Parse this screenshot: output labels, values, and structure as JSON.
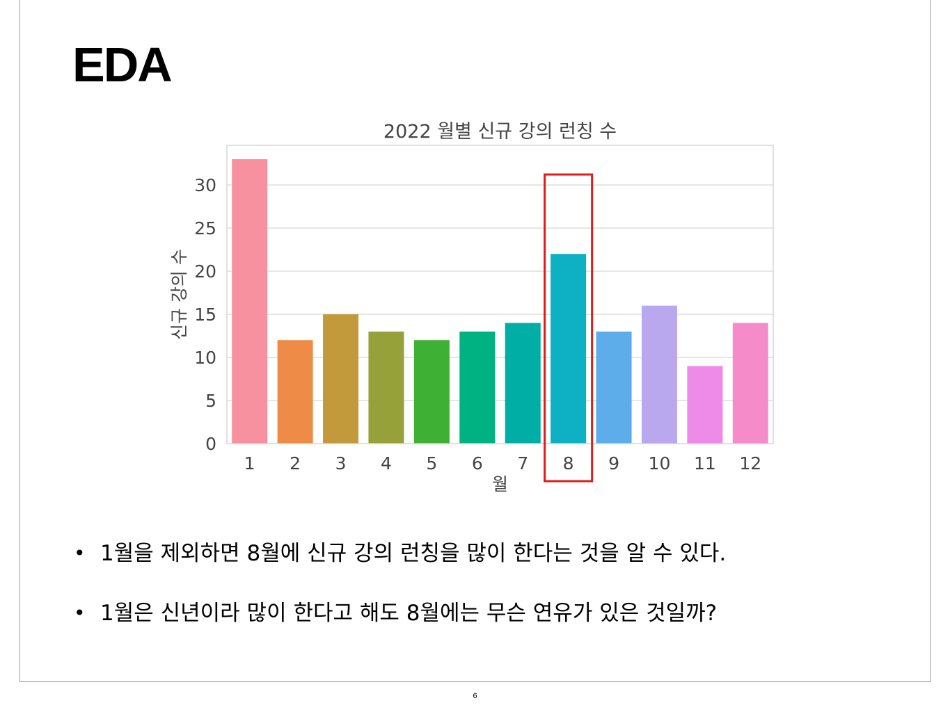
{
  "slide": {
    "title": "EDA",
    "bullets": [
      "1월을 제외하면 8월에 신규 강의 런칭을 많이 한다는 것을 알 수 있다.",
      "1월은 신년이라 많이 한다고 해도 8월에는 무슨 연유가 있은 것일까?"
    ],
    "page_number": "6"
  },
  "chart_data": {
    "type": "bar",
    "title": "2022 월별 신규 강의 런칭 수",
    "xlabel": "월",
    "ylabel": "신규 강의 수",
    "categories": [
      "1",
      "2",
      "3",
      "4",
      "5",
      "6",
      "7",
      "8",
      "9",
      "10",
      "11",
      "12"
    ],
    "values": [
      33,
      12,
      15,
      13,
      12,
      13,
      14,
      22,
      13,
      16,
      9,
      14
    ],
    "colors": [
      "#f7919f",
      "#ee8c47",
      "#c39a3b",
      "#97a13a",
      "#3eb034",
      "#00b282",
      "#00aea5",
      "#0eb0c4",
      "#5cadea",
      "#b9a8ee",
      "#ee8be8",
      "#f68bca"
    ],
    "ylim": [
      0,
      34.6
    ],
    "yticks": [
      0,
      5,
      10,
      15,
      20,
      25,
      30
    ],
    "grid": true,
    "legend": "none",
    "highlight": {
      "category": "8",
      "color": "#e01b1b"
    },
    "gridline_color": "#dddddd",
    "spine_color": "#d5d5d5",
    "text_color": "#444444"
  }
}
